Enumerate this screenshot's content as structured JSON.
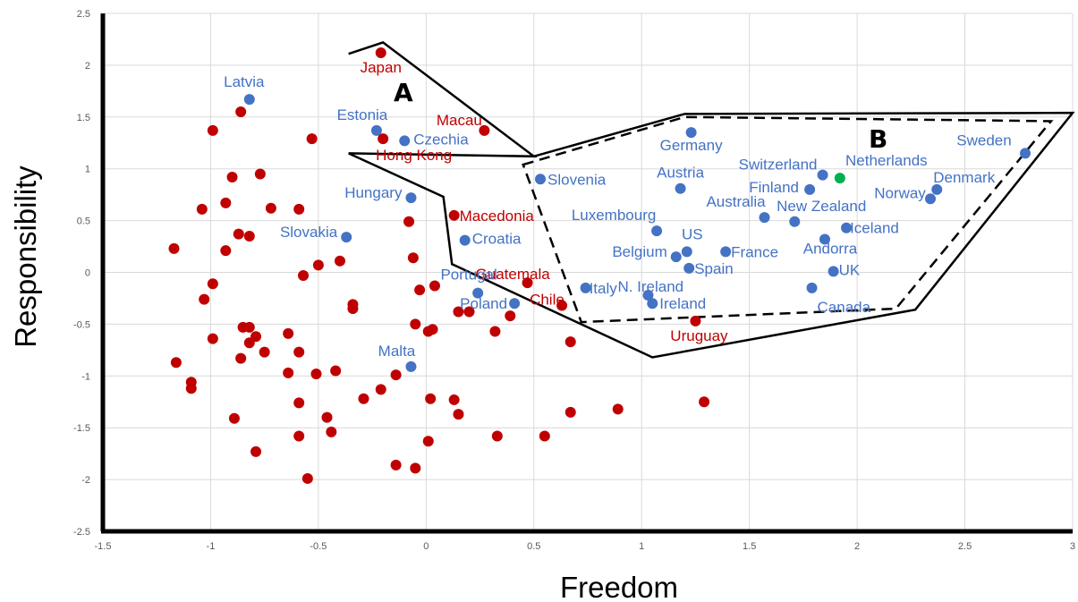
{
  "chart_data": {
    "type": "scatter",
    "title": "",
    "xlabel": "Freedom",
    "ylabel": "Responsibility",
    "xlim": [
      -1.5,
      3
    ],
    "ylim": [
      -2.5,
      2.5
    ],
    "x_ticks": [
      "-1.5",
      "-1",
      "-0.5",
      "0",
      "0.5",
      "1",
      "1.5",
      "2",
      "2.5",
      "3"
    ],
    "y_ticks": [
      "2.5",
      "2",
      "1.5",
      "1",
      "0.5",
      "0",
      "-0.5",
      "-1",
      "-1.5",
      "-2",
      "-2.5"
    ],
    "grid": true,
    "colors": {
      "blue": "#4472c4",
      "red": "#c00000",
      "green": "#00b050",
      "grid": "#d9d9d9",
      "axis": "#000000"
    },
    "region_labels": [
      "A",
      "B"
    ],
    "region_A": [
      [
        -0.36,
        2.11
      ],
      [
        -0.2,
        2.22
      ],
      [
        0.5,
        1.12
      ],
      [
        -0.36,
        1.15
      ]
    ],
    "region_A_lower": [
      [
        -0.36,
        1.15
      ],
      [
        0.08,
        0.73
      ],
      [
        0.12,
        0.08
      ],
      [
        1.05,
        -0.82
      ],
      [
        2.27,
        -0.36
      ],
      [
        3.0,
        1.54
      ],
      [
        1.2,
        1.53
      ],
      [
        0.5,
        1.12
      ]
    ],
    "region_B": [
      [
        0.45,
        1.04
      ],
      [
        1.2,
        1.5
      ],
      [
        2.9,
        1.46
      ],
      [
        2.18,
        -0.35
      ],
      [
        0.72,
        -0.48
      ]
    ],
    "labeled_points": [
      {
        "label": "Latvia",
        "x": -0.82,
        "y": 1.67,
        "color": "blue"
      },
      {
        "label": "Japan",
        "x": -0.21,
        "y": 2.12,
        "color": "red"
      },
      {
        "label": "Estonia",
        "x": -0.23,
        "y": 1.37,
        "color": "blue"
      },
      {
        "label": "Czechia",
        "x": -0.1,
        "y": 1.27,
        "color": "blue"
      },
      {
        "label": "Hong Kong",
        "x": -0.2,
        "y": 1.29,
        "color": "red"
      },
      {
        "label": "Macau",
        "x": 0.27,
        "y": 1.37,
        "color": "red"
      },
      {
        "label": "Hungary",
        "x": -0.07,
        "y": 0.72,
        "color": "blue"
      },
      {
        "label": "Slovakia",
        "x": -0.37,
        "y": 0.34,
        "color": "blue"
      },
      {
        "label": "Macedonia",
        "x": 0.13,
        "y": 0.55,
        "color": "red"
      },
      {
        "label": "Croatia",
        "x": 0.18,
        "y": 0.31,
        "color": "blue"
      },
      {
        "label": "Guatemala",
        "x": 0.47,
        "y": -0.1,
        "color": "red"
      },
      {
        "label": "Portugal",
        "x": 0.24,
        "y": -0.2,
        "color": "blue"
      },
      {
        "label": "Poland",
        "x": 0.41,
        "y": -0.3,
        "color": "blue"
      },
      {
        "label": "Chile",
        "x": 0.63,
        "y": -0.32,
        "color": "red"
      },
      {
        "label": "Malta",
        "x": -0.07,
        "y": -0.91,
        "color": "blue"
      },
      {
        "label": "Slovenia",
        "x": 0.53,
        "y": 0.9,
        "color": "blue"
      },
      {
        "label": "Italy",
        "x": 0.74,
        "y": -0.15,
        "color": "blue"
      },
      {
        "label": "Germany",
        "x": 1.23,
        "y": 1.35,
        "color": "blue"
      },
      {
        "label": "Austria",
        "x": 1.18,
        "y": 0.81,
        "color": "blue"
      },
      {
        "label": "Luxembourg",
        "x": 1.07,
        "y": 0.4,
        "color": "blue"
      },
      {
        "label": "US",
        "x": 1.21,
        "y": 0.2,
        "color": "blue"
      },
      {
        "label": "Belgium",
        "x": 1.16,
        "y": 0.15,
        "color": "blue"
      },
      {
        "label": "Spain",
        "x": 1.22,
        "y": 0.04,
        "color": "blue"
      },
      {
        "label": "N. Ireland",
        "x": 1.03,
        "y": -0.22,
        "color": "blue"
      },
      {
        "label": "Ireland",
        "x": 1.05,
        "y": -0.3,
        "color": "blue"
      },
      {
        "label": "Uruguay",
        "x": 1.25,
        "y": -0.47,
        "color": "red"
      },
      {
        "label": "France",
        "x": 1.39,
        "y": 0.2,
        "color": "blue"
      },
      {
        "label": "Australia",
        "x": 1.57,
        "y": 0.53,
        "color": "blue"
      },
      {
        "label": "Switzerland",
        "x": 1.84,
        "y": 0.94,
        "color": "blue"
      },
      {
        "label": "Netherlands",
        "x": 1.92,
        "y": 0.91,
        "color": "green"
      },
      {
        "label": "Finland",
        "x": 1.78,
        "y": 0.8,
        "color": "blue"
      },
      {
        "label": "New Zealand",
        "x": 1.71,
        "y": 0.49,
        "color": "blue"
      },
      {
        "label": "Iceland",
        "x": 1.95,
        "y": 0.43,
        "color": "blue"
      },
      {
        "label": "Andorra",
        "x": 1.85,
        "y": 0.32,
        "color": "blue"
      },
      {
        "label": "UK",
        "x": 1.89,
        "y": 0.01,
        "color": "blue"
      },
      {
        "label": "Canada",
        "x": 1.79,
        "y": -0.15,
        "color": "blue"
      },
      {
        "label": "Norway",
        "x": 2.34,
        "y": 0.71,
        "color": "blue"
      },
      {
        "label": "Denmark",
        "x": 2.37,
        "y": 0.8,
        "color": "blue"
      },
      {
        "label": "Sweden",
        "x": 2.78,
        "y": 1.15,
        "color": "blue"
      }
    ],
    "unlabeled_points": [
      [
        -1.17,
        0.23
      ],
      [
        -1.16,
        -0.87
      ],
      [
        -1.09,
        -1.06
      ],
      [
        -1.09,
        -1.12
      ],
      [
        -1.04,
        0.61
      ],
      [
        -1.03,
        -0.26
      ],
      [
        -0.99,
        1.37
      ],
      [
        -0.99,
        -0.11
      ],
      [
        -0.99,
        -0.64
      ],
      [
        -0.93,
        0.21
      ],
      [
        -0.93,
        0.67
      ],
      [
        -0.9,
        0.92
      ],
      [
        -0.89,
        -1.41
      ],
      [
        -0.87,
        0.37
      ],
      [
        -0.86,
        1.55
      ],
      [
        -0.86,
        -0.83
      ],
      [
        -0.85,
        -0.53
      ],
      [
        -0.82,
        -0.53
      ],
      [
        -0.82,
        0.35
      ],
      [
        -0.82,
        -0.68
      ],
      [
        -0.79,
        -0.62
      ],
      [
        -0.79,
        -1.73
      ],
      [
        -0.77,
        0.95
      ],
      [
        -0.75,
        -0.77
      ],
      [
        -0.72,
        0.62
      ],
      [
        -0.64,
        -0.59
      ],
      [
        -0.64,
        -0.97
      ],
      [
        -0.59,
        0.61
      ],
      [
        -0.59,
        -0.77
      ],
      [
        -0.59,
        -1.26
      ],
      [
        -0.59,
        -1.58
      ],
      [
        -0.57,
        -0.03
      ],
      [
        -0.55,
        -1.99
      ],
      [
        -0.53,
        1.29
      ],
      [
        -0.51,
        -0.98
      ],
      [
        -0.5,
        0.07
      ],
      [
        -0.46,
        -1.4
      ],
      [
        -0.44,
        -1.54
      ],
      [
        -0.42,
        -0.95
      ],
      [
        -0.4,
        0.11
      ],
      [
        -0.34,
        -0.31
      ],
      [
        -0.34,
        -0.35
      ],
      [
        -0.29,
        -1.22
      ],
      [
        -0.21,
        -1.13
      ],
      [
        -0.14,
        -0.99
      ],
      [
        -0.14,
        -1.86
      ],
      [
        -0.08,
        0.49
      ],
      [
        -0.06,
        0.14
      ],
      [
        -0.05,
        -0.5
      ],
      [
        -0.05,
        -1.89
      ],
      [
        -0.03,
        -0.17
      ],
      [
        0.01,
        -0.57
      ],
      [
        0.01,
        -1.63
      ],
      [
        0.02,
        -1.22
      ],
      [
        0.03,
        -0.55
      ],
      [
        0.04,
        -0.13
      ],
      [
        0.13,
        -1.23
      ],
      [
        0.15,
        -0.38
      ],
      [
        0.15,
        -1.37
      ],
      [
        0.2,
        -0.38
      ],
      [
        0.32,
        -0.57
      ],
      [
        0.33,
        -1.58
      ],
      [
        0.39,
        -0.42
      ],
      [
        0.55,
        -1.58
      ],
      [
        0.67,
        -0.67
      ],
      [
        0.67,
        -1.35
      ],
      [
        0.89,
        -1.32
      ],
      [
        1.29,
        -1.25
      ]
    ]
  }
}
